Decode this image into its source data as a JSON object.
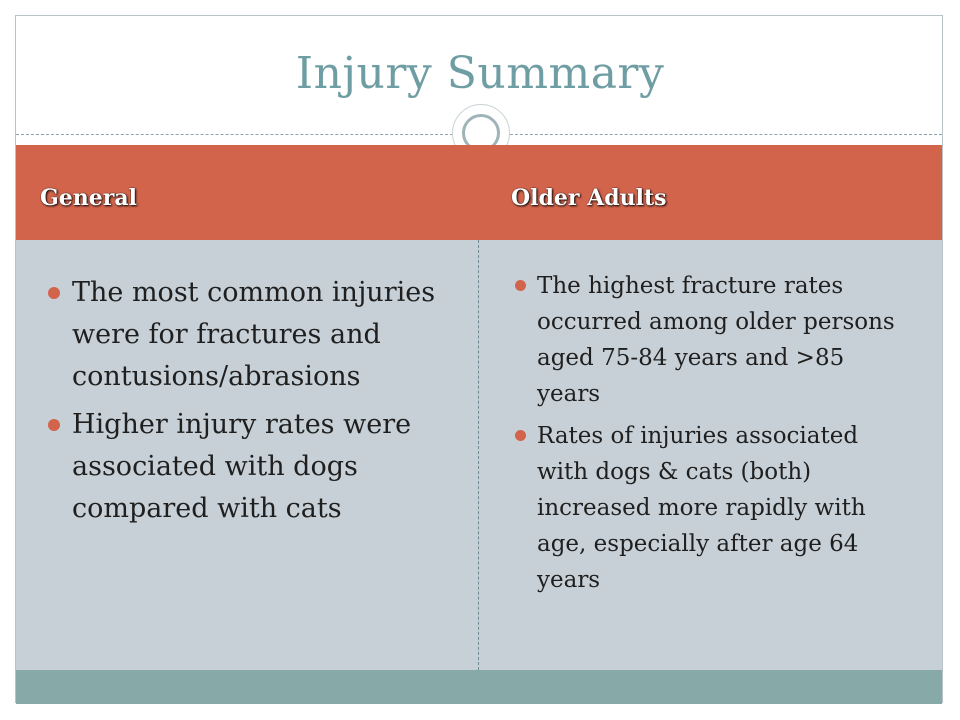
{
  "slide": {
    "title": "Injury Summary"
  },
  "table": {
    "columns": [
      {
        "header": "General",
        "bullets": [
          "The most common injuries were for fractures and contusions/abrasions",
          "Higher injury rates were associated with dogs compared with cats"
        ]
      },
      {
        "header": "Older Adults",
        "bullets": [
          "The highest fracture rates occurred among older persons aged 75-84 years and >85 years",
          "Rates of injuries associated with dogs & cats (both) increased more rapidly with age, especially after age 64 years"
        ]
      }
    ]
  },
  "colors": {
    "title": "#6e9ea3",
    "header_bg": "#d2644c",
    "body_bg": "#c7d0d6",
    "footer_bg": "#87aaa9",
    "bullet": "#d2644c"
  }
}
